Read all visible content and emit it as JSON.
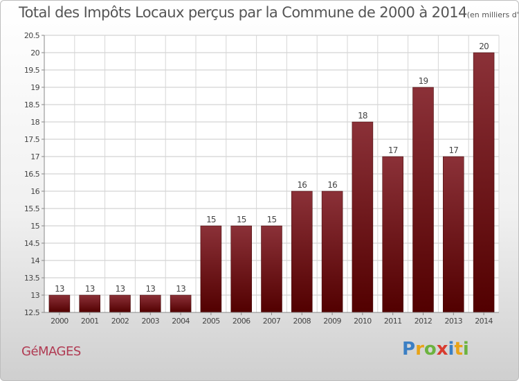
{
  "header": {
    "title": "Total des Impôts Locaux perçus par la Commune de 2000 à 2014",
    "unit": "(en milliers d'€)"
  },
  "footer": {
    "commune": "GéMAGES",
    "brand_letters": [
      "P",
      "r",
      "o",
      "x",
      "i",
      "t",
      "i"
    ]
  },
  "colors": {
    "bar_top": "#8b3138",
    "bar_bottom": "#520000",
    "brand": [
      "#3b7fc4",
      "#e8a317",
      "#6cb33f",
      "#d93b2f",
      "#3b7fc4",
      "#e8a317",
      "#6cb33f"
    ]
  },
  "chart_data": {
    "type": "bar",
    "title": "Total des Impôts Locaux perçus par la Commune de 2000 à 2014",
    "xlabel": "",
    "ylabel": "en milliers d'€",
    "categories": [
      "2000",
      "2001",
      "2002",
      "2003",
      "2004",
      "2005",
      "2006",
      "2007",
      "2008",
      "2009",
      "2010",
      "2011",
      "2012",
      "2013",
      "2014"
    ],
    "values": [
      13,
      13,
      13,
      13,
      13,
      15,
      15,
      15,
      16,
      16,
      18,
      17,
      19,
      17,
      20
    ],
    "labels": [
      "13",
      "13",
      "13",
      "13",
      "13",
      "15",
      "15",
      "15",
      "16",
      "16",
      "18",
      "17",
      "19",
      "17",
      "20"
    ],
    "ylim": [
      12.5,
      20.5
    ],
    "yticks": [
      12.5,
      13,
      13.5,
      14,
      14.5,
      15,
      15.5,
      16,
      16.5,
      17,
      17.5,
      18,
      18.5,
      19,
      19.5,
      20,
      20.5
    ],
    "ytick_labels": [
      "12.5",
      "13",
      "13.5",
      "14",
      "14.5",
      "15",
      "15.5",
      "16",
      "16.5",
      "17",
      "17.5",
      "18",
      "18.5",
      "19",
      "19.5",
      "20",
      "20.5"
    ],
    "grid": true
  }
}
